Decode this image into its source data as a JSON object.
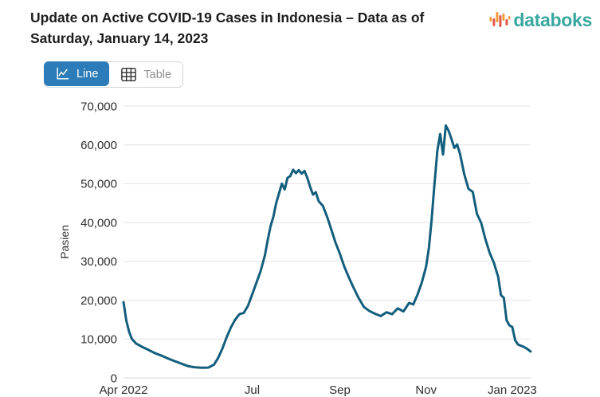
{
  "header": {
    "title": "Update on Active COVID-19 Cases in Indonesia – Data as of Saturday, January 14, 2023",
    "logo_text": "databoks",
    "logo_colors": {
      "text": "#38a7a0",
      "orange": "#f39c38",
      "red": "#e2574c"
    }
  },
  "toolbar": {
    "buttons": [
      {
        "label": "Line",
        "active": true
      },
      {
        "label": "Table",
        "active": false
      }
    ],
    "active_color": "#2b7cb8"
  },
  "chart_data": {
    "type": "line",
    "title": "Update on Active COVID-19 Cases in Indonesia – Data as of Saturday, January 14, 2023",
    "xlabel": "",
    "ylabel": "Pasien",
    "ylim": [
      0,
      70000
    ],
    "y_tick_step": 10000,
    "grid": "horizontal",
    "legend": "none",
    "line_color": "#135e7d",
    "x_ticks": [
      {
        "date": "2022-04-01",
        "label": "Apr 2022"
      },
      {
        "date": "2022-07-01",
        "label": "Jul"
      },
      {
        "date": "2022-09-01",
        "label": "Sep"
      },
      {
        "date": "2022-11-01",
        "label": "Nov"
      },
      {
        "date": "2023-01-01",
        "label": "Jan 2023"
      }
    ],
    "series": [
      {
        "name": "Pasien",
        "points": [
          [
            "2022-04-01",
            19500
          ],
          [
            "2022-04-03",
            14800
          ],
          [
            "2022-04-05",
            11800
          ],
          [
            "2022-04-07",
            10000
          ],
          [
            "2022-04-10",
            8800
          ],
          [
            "2022-04-14",
            8000
          ],
          [
            "2022-04-18",
            7300
          ],
          [
            "2022-04-23",
            6400
          ],
          [
            "2022-04-28",
            5700
          ],
          [
            "2022-05-03",
            4900
          ],
          [
            "2022-05-08",
            4200
          ],
          [
            "2022-05-13",
            3500
          ],
          [
            "2022-05-17",
            3000
          ],
          [
            "2022-05-21",
            2750
          ],
          [
            "2022-05-26",
            2600
          ],
          [
            "2022-05-31",
            2650
          ],
          [
            "2022-06-04",
            3400
          ],
          [
            "2022-06-07",
            5200
          ],
          [
            "2022-06-10",
            7600
          ],
          [
            "2022-06-13",
            10500
          ],
          [
            "2022-06-16",
            13000
          ],
          [
            "2022-06-19",
            15000
          ],
          [
            "2022-06-22",
            16400
          ],
          [
            "2022-06-25",
            16700
          ],
          [
            "2022-06-28",
            18500
          ],
          [
            "2022-07-01",
            21500
          ],
          [
            "2022-07-04",
            24500
          ],
          [
            "2022-07-07",
            27500
          ],
          [
            "2022-07-10",
            31500
          ],
          [
            "2022-07-12",
            35500
          ],
          [
            "2022-07-14",
            39000
          ],
          [
            "2022-07-16",
            41500
          ],
          [
            "2022-07-18",
            45000
          ],
          [
            "2022-07-20",
            47500
          ],
          [
            "2022-07-22",
            50000
          ],
          [
            "2022-07-24",
            48500
          ],
          [
            "2022-07-26",
            51500
          ],
          [
            "2022-07-28",
            52000
          ],
          [
            "2022-07-30",
            53600
          ],
          [
            "2022-08-01",
            52700
          ],
          [
            "2022-08-03",
            53500
          ],
          [
            "2022-08-05",
            52600
          ],
          [
            "2022-08-07",
            53300
          ],
          [
            "2022-08-09",
            51500
          ],
          [
            "2022-08-11",
            49200
          ],
          [
            "2022-08-13",
            47200
          ],
          [
            "2022-08-15",
            47800
          ],
          [
            "2022-08-17",
            45500
          ],
          [
            "2022-08-20",
            44300
          ],
          [
            "2022-08-23",
            41500
          ],
          [
            "2022-08-26",
            38200
          ],
          [
            "2022-08-29",
            34800
          ],
          [
            "2022-09-01",
            32000
          ],
          [
            "2022-09-04",
            28800
          ],
          [
            "2022-09-07",
            26200
          ],
          [
            "2022-09-10",
            23800
          ],
          [
            "2022-09-14",
            20800
          ],
          [
            "2022-09-18",
            18300
          ],
          [
            "2022-09-22",
            17200
          ],
          [
            "2022-09-26",
            16500
          ],
          [
            "2022-09-30",
            15900
          ],
          [
            "2022-10-04",
            16900
          ],
          [
            "2022-10-08",
            16400
          ],
          [
            "2022-10-12",
            17900
          ],
          [
            "2022-10-16",
            17100
          ],
          [
            "2022-10-20",
            19300
          ],
          [
            "2022-10-23",
            18900
          ],
          [
            "2022-10-26",
            21500
          ],
          [
            "2022-10-29",
            24600
          ],
          [
            "2022-11-01",
            28600
          ],
          [
            "2022-11-03",
            33500
          ],
          [
            "2022-11-05",
            41000
          ],
          [
            "2022-11-07",
            50000
          ],
          [
            "2022-11-09",
            58500
          ],
          [
            "2022-11-11",
            62800
          ],
          [
            "2022-11-13",
            57500
          ],
          [
            "2022-11-15",
            65000
          ],
          [
            "2022-11-17",
            63600
          ],
          [
            "2022-11-19",
            61500
          ],
          [
            "2022-11-21",
            59200
          ],
          [
            "2022-11-23",
            60100
          ],
          [
            "2022-11-25",
            57700
          ],
          [
            "2022-11-28",
            52500
          ],
          [
            "2022-12-01",
            48700
          ],
          [
            "2022-12-04",
            47900
          ],
          [
            "2022-12-07",
            42200
          ],
          [
            "2022-12-10",
            39900
          ],
          [
            "2022-12-13",
            35700
          ],
          [
            "2022-12-16",
            32200
          ],
          [
            "2022-12-19",
            29600
          ],
          [
            "2022-12-22",
            26000
          ],
          [
            "2022-12-24",
            21300
          ],
          [
            "2022-12-26",
            20600
          ],
          [
            "2022-12-28",
            14800
          ],
          [
            "2022-12-30",
            13500
          ],
          [
            "2023-01-01",
            13100
          ],
          [
            "2023-01-03",
            9700
          ],
          [
            "2023-01-05",
            8600
          ],
          [
            "2023-01-07",
            8300
          ],
          [
            "2023-01-09",
            8000
          ],
          [
            "2023-01-11",
            7600
          ],
          [
            "2023-01-14",
            6800
          ]
        ]
      }
    ]
  }
}
